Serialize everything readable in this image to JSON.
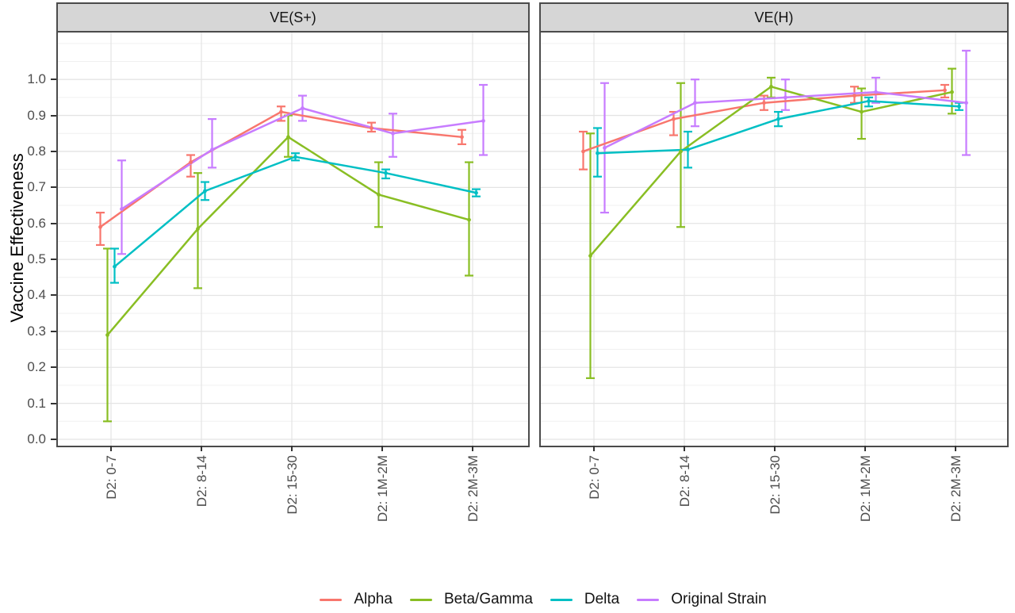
{
  "chart_data": {
    "type": "line",
    "ylabel": "Vaccine Effectiveness",
    "categories": [
      "D2: 0-7",
      "D2: 8-14",
      "D2: 15-30",
      "D2: 1M-2M",
      "D2: 2M-3M"
    ],
    "y_ticks": [
      "0.0",
      "0.1",
      "0.2",
      "0.3",
      "0.4",
      "0.5",
      "0.6",
      "0.7",
      "0.8",
      "0.9",
      "1.0"
    ],
    "ylim": [
      0.0,
      1.13
    ],
    "grid": "horizontal major+minor, vertical at categories",
    "legend_position": "bottom",
    "error_bars": "95% CI",
    "panels": [
      {
        "title": "VE(S+)",
        "series": [
          {
            "name": "Alpha",
            "color": "#F8766D",
            "values": [
              0.59,
              0.77,
              0.91,
              0.865,
              0.84
            ],
            "ci_lower": [
              0.54,
              0.73,
              0.885,
              0.855,
              0.82
            ],
            "ci_upper": [
              0.63,
              0.79,
              0.925,
              0.88,
              0.86
            ]
          },
          {
            "name": "Beta/Gamma",
            "color": "#89BE23",
            "values": [
              0.29,
              0.585,
              0.84,
              0.68,
              0.61
            ],
            "ci_lower": [
              0.05,
              0.42,
              0.785,
              0.59,
              0.455
            ],
            "ci_upper": [
              0.53,
              0.74,
              0.9,
              0.77,
              0.77
            ]
          },
          {
            "name": "Delta",
            "color": "#00BFC4",
            "values": [
              0.48,
              0.69,
              0.785,
              0.74,
              0.685
            ],
            "ci_lower": [
              0.435,
              0.665,
              0.775,
              0.725,
              0.675
            ],
            "ci_upper": [
              0.53,
              0.715,
              0.795,
              0.75,
              0.695
            ]
          },
          {
            "name": "Original Strain",
            "color": "#C77CFF",
            "values": [
              0.64,
              0.805,
              0.92,
              0.85,
              0.885
            ],
            "ci_lower": [
              0.515,
              0.755,
              0.885,
              0.785,
              0.79
            ],
            "ci_upper": [
              0.775,
              0.89,
              0.955,
              0.905,
              0.985
            ]
          }
        ]
      },
      {
        "title": "VE(H)",
        "series": [
          {
            "name": "Alpha",
            "color": "#F8766D",
            "values": [
              0.8,
              0.89,
              0.935,
              0.955,
              0.97
            ],
            "ci_lower": [
              0.75,
              0.845,
              0.915,
              0.935,
              0.95
            ],
            "ci_upper": [
              0.855,
              0.91,
              0.955,
              0.98,
              0.985
            ]
          },
          {
            "name": "Beta/Gamma",
            "color": "#89BE23",
            "values": [
              0.51,
              0.8,
              0.98,
              0.91,
              0.965
            ],
            "ci_lower": [
              0.17,
              0.59,
              0.95,
              0.835,
              0.905
            ],
            "ci_upper": [
              0.85,
              0.99,
              1.005,
              0.975,
              1.03
            ]
          },
          {
            "name": "Delta",
            "color": "#00BFC4",
            "values": [
              0.795,
              0.805,
              0.89,
              0.94,
              0.925
            ],
            "ci_lower": [
              0.73,
              0.755,
              0.87,
              0.925,
              0.915
            ],
            "ci_upper": [
              0.865,
              0.855,
              0.91,
              0.95,
              0.935
            ]
          },
          {
            "name": "Original Strain",
            "color": "#C77CFF",
            "values": [
              0.81,
              0.935,
              0.95,
              0.965,
              0.935
            ],
            "ci_lower": [
              0.63,
              0.87,
              0.915,
              0.935,
              0.79
            ],
            "ci_upper": [
              0.99,
              1.0,
              1.0,
              1.005,
              1.08
            ]
          }
        ]
      }
    ]
  },
  "legend": {
    "entries": [
      {
        "label": "Alpha",
        "color": "#F8766D"
      },
      {
        "label": "Beta/Gamma",
        "color": "#89BE23"
      },
      {
        "label": "Delta",
        "color": "#00BFC4"
      },
      {
        "label": "Original Strain",
        "color": "#C77CFF"
      }
    ]
  },
  "style_colors": {
    "strip_background": "#d6d6d6",
    "panel_border": "#4b4b4b",
    "grid_major": "#e4e4e4",
    "grid_minor": "#f0f0f0",
    "axis_text": "#4d4d4d"
  }
}
